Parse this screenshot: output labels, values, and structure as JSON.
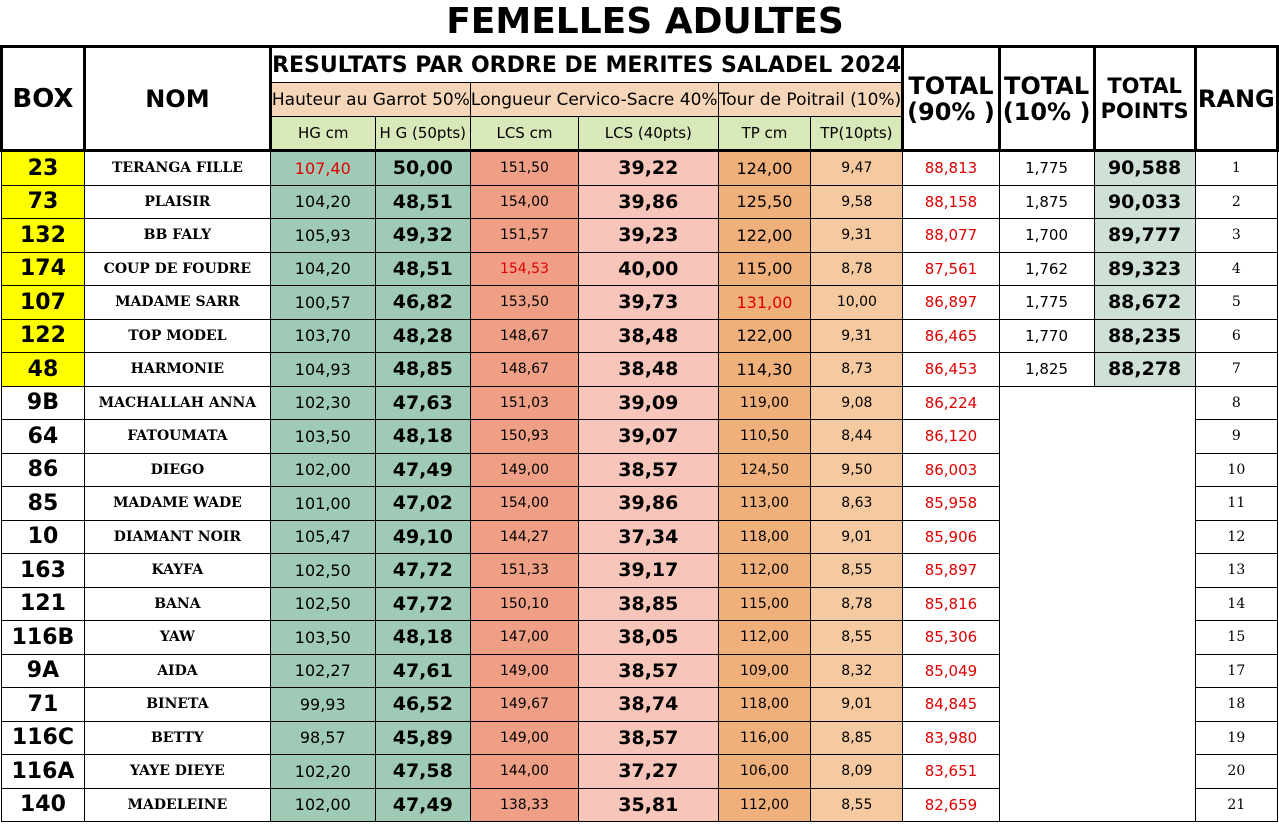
{
  "title": "FEMELLES ADULTES",
  "colors": {
    "top_box_fill": "#ffff00",
    "hg_fill": "#9fcbb6",
    "lcs_cm_fill": "#ee9f86",
    "lcs_pts_fill": "#f7c5b9",
    "tp_cm_fill": "#f0b07c",
    "tp_pts_fill": "#f6caa0",
    "sub_header_fill": "#d9e8b8",
    "total_points_fill": "#cfe1d7",
    "highlight_text": "#e00000"
  },
  "header": {
    "box": "BOX",
    "nom": "NOM",
    "results_title": "RESULTATS  PAR ORDRE DE MERITES SALADEL 2024",
    "group_hg": "Hauteur au Garrot 50%",
    "group_lcs": "Longueur Cervico-Sacre 40%",
    "group_tp": "Tour de Poitrail (10%)",
    "sub_hg_cm": "HG cm",
    "sub_hg_pts": "H G (50pts)",
    "sub_lcs_cm": "LCS cm",
    "sub_lcs_pts": "LCS (40pts)",
    "sub_tp_cm": "TP cm",
    "sub_tp_pts": "TP(10pts)",
    "total90_line1": "TOTAL",
    "total90_line2": "(90% )",
    "total10_line1": "TOTAL",
    "total10_line2": "(10% )",
    "totalpts_line1": "TOTAL",
    "totalpts_line2": "POINTS",
    "rang": "RANG"
  },
  "rows": [
    {
      "box": "23",
      "nom": "TERANGA FILLE",
      "hg": "107,40",
      "hg_pts": "50,00",
      "lcs": "151,50",
      "lcs_pts": "39,22",
      "tp": "124,00",
      "tp_pts": "9,47",
      "total90": "88,813",
      "total10": "1,775",
      "total_points": "90,588",
      "rang": "1",
      "top": true,
      "hl_hg": true
    },
    {
      "box": "73",
      "nom": "PLAISIR",
      "hg": "104,20",
      "hg_pts": "48,51",
      "lcs": "154,00",
      "lcs_pts": "39,86",
      "tp": "125,50",
      "tp_pts": "9,58",
      "total90": "88,158",
      "total10": "1,875",
      "total_points": "90,033",
      "rang": "2",
      "top": true
    },
    {
      "box": "132",
      "nom": "BB FALY",
      "hg": "105,93",
      "hg_pts": "49,32",
      "lcs": "151,57",
      "lcs_pts": "39,23",
      "tp": "122,00",
      "tp_pts": "9,31",
      "total90": "88,077",
      "total10": "1,700",
      "total_points": "89,777",
      "rang": "3",
      "top": true
    },
    {
      "box": "174",
      "nom": "COUP DE FOUDRE",
      "hg": "104,20",
      "hg_pts": "48,51",
      "lcs": "154,53",
      "lcs_pts": "40,00",
      "tp": "115,00",
      "tp_pts": "8,78",
      "total90": "87,561",
      "total10": "1,762",
      "total_points": "89,323",
      "rang": "4",
      "top": true,
      "hl_lcs": true
    },
    {
      "box": "107",
      "nom": "MADAME SARR",
      "hg": "100,57",
      "hg_pts": "46,82",
      "lcs": "153,50",
      "lcs_pts": "39,73",
      "tp": "131,00",
      "tp_pts": "10,00",
      "total90": "86,897",
      "total10": "1,775",
      "total_points": "88,672",
      "rang": "5",
      "top": true,
      "hl_tp": true
    },
    {
      "box": "122",
      "nom": "TOP MODEL",
      "hg": "103,70",
      "hg_pts": "48,28",
      "lcs": "148,67",
      "lcs_pts": "38,48",
      "tp": "122,00",
      "tp_pts": "9,31",
      "total90": "86,465",
      "total10": "1,770",
      "total_points": "88,235",
      "rang": "6",
      "top": true
    },
    {
      "box": "48",
      "nom": "HARMONIE",
      "hg": "104,93",
      "hg_pts": "48,85",
      "lcs": "148,67",
      "lcs_pts": "38,48",
      "tp": "114,30",
      "tp_pts": "8,73",
      "total90": "86,453",
      "total10": "1,825",
      "total_points": "88,278",
      "rang": "7",
      "top": true
    },
    {
      "box": "9B",
      "nom": "MACHALLAH ANNA",
      "hg": "102,30",
      "hg_pts": "47,63",
      "lcs": "151,03",
      "lcs_pts": "39,09",
      "tp": "119,00",
      "tp_pts": "9,08",
      "total90": "86,224",
      "rang": "8"
    },
    {
      "box": "64",
      "nom": "FATOUMATA",
      "hg": "103,50",
      "hg_pts": "48,18",
      "lcs": "150,93",
      "lcs_pts": "39,07",
      "tp": "110,50",
      "tp_pts": "8,44",
      "total90": "86,120",
      "rang": "9"
    },
    {
      "box": "86",
      "nom": "DIEGO",
      "hg": "102,00",
      "hg_pts": "47,49",
      "lcs": "149,00",
      "lcs_pts": "38,57",
      "tp": "124,50",
      "tp_pts": "9,50",
      "total90": "86,003",
      "rang": "10"
    },
    {
      "box": "85",
      "nom": "MADAME WADE",
      "hg": "101,00",
      "hg_pts": "47,02",
      "lcs": "154,00",
      "lcs_pts": "39,86",
      "tp": "113,00",
      "tp_pts": "8,63",
      "total90": "85,958",
      "rang": "11"
    },
    {
      "box": "10",
      "nom": "DIAMANT NOIR",
      "hg": "105,47",
      "hg_pts": "49,10",
      "lcs": "144,27",
      "lcs_pts": "37,34",
      "tp": "118,00",
      "tp_pts": "9,01",
      "total90": "85,906",
      "rang": "12"
    },
    {
      "box": "163",
      "nom": "KAYFA",
      "hg": "102,50",
      "hg_pts": "47,72",
      "lcs": "151,33",
      "lcs_pts": "39,17",
      "tp": "112,00",
      "tp_pts": "8,55",
      "total90": "85,897",
      "rang": "13"
    },
    {
      "box": "121",
      "nom": "BANA",
      "hg": "102,50",
      "hg_pts": "47,72",
      "lcs": "150,10",
      "lcs_pts": "38,85",
      "tp": "115,00",
      "tp_pts": "8,78",
      "total90": "85,816",
      "rang": "14"
    },
    {
      "box": "116B",
      "nom": "YAW",
      "hg": "103,50",
      "hg_pts": "48,18",
      "lcs": "147,00",
      "lcs_pts": "38,05",
      "tp": "112,00",
      "tp_pts": "8,55",
      "total90": "85,306",
      "rang": "15"
    },
    {
      "box": "9A",
      "nom": "AIDA",
      "hg": "102,27",
      "hg_pts": "47,61",
      "lcs": "149,00",
      "lcs_pts": "38,57",
      "tp": "109,00",
      "tp_pts": "8,32",
      "total90": "85,049",
      "rang": "17"
    },
    {
      "box": "71",
      "nom": "BINETA",
      "hg": "99,93",
      "hg_pts": "46,52",
      "lcs": "149,67",
      "lcs_pts": "38,74",
      "tp": "118,00",
      "tp_pts": "9,01",
      "total90": "84,845",
      "rang": "18"
    },
    {
      "box": "116C",
      "nom": "BETTY",
      "hg": "98,57",
      "hg_pts": "45,89",
      "lcs": "149,00",
      "lcs_pts": "38,57",
      "tp": "116,00",
      "tp_pts": "8,85",
      "total90": "83,980",
      "rang": "19"
    },
    {
      "box": "116A",
      "nom": "YAYE DIEYE",
      "hg": "102,20",
      "hg_pts": "47,58",
      "lcs": "144,00",
      "lcs_pts": "37,27",
      "tp": "106,00",
      "tp_pts": "8,09",
      "total90": "83,651",
      "rang": "20"
    },
    {
      "box": "140",
      "nom": "MADELEINE",
      "hg": "102,00",
      "hg_pts": "47,49",
      "lcs": "138,33",
      "lcs_pts": "35,81",
      "tp": "112,00",
      "tp_pts": "8,55",
      "total90": "82,659",
      "rang": "21"
    }
  ]
}
